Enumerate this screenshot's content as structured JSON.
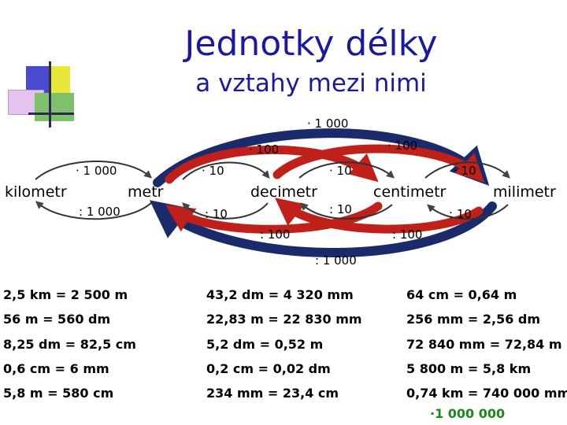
{
  "title": "Jednotky délky",
  "subtitle": "a vztahy mezi nimi",
  "units": {
    "kilometr": "kilometr",
    "metr": "metr",
    "decimetr": "decimetr",
    "centimetr": "centimetr",
    "milimetr": "milimetr"
  },
  "operations": {
    "km_m_mul": "· 1 000",
    "km_m_div": ": 1 000",
    "m_dm_mul": "· 10",
    "m_dm_div": ": 10",
    "dm_cm_mul": "· 10",
    "dm_cm_div": ": 10",
    "cm_mm_mul": "· 10",
    "cm_mm_div": ": 10",
    "m_cm_mul": "· 100",
    "m_cm_div": ": 100",
    "dm_mm_mul": "· 100",
    "dm_mm_div": ": 100",
    "m_mm_mul": "· 1 000",
    "m_mm_div": ": 1 000"
  },
  "exercises": {
    "col1": [
      "2,5 km = 2 500 m",
      "56 m = 560 dm",
      "8,25 dm = 82,5 cm",
      "0,6 cm = 6 mm",
      "5,8 m = 580 cm"
    ],
    "col2": [
      "43,2 dm = 4 320 mm",
      "22,83 m = 22 830 mm",
      "5,2 dm = 0,52 m",
      "0,2 cm = 0,02 dm",
      "234 mm = 23,4 cm"
    ],
    "col3": [
      "64 cm = 0,64 m",
      "256 mm = 2,56 dm",
      "72 840 mm = 72,84 m",
      "5 800 m = 5,8 km",
      "0,74 km = 740 000 mm"
    ]
  },
  "hint": "·1 000 000",
  "colors": {
    "title": "#1a1aa0",
    "arrow_red": "#c0201a",
    "arrow_navy": "#1b2a6b",
    "hint_green": "#1a8a1a"
  }
}
